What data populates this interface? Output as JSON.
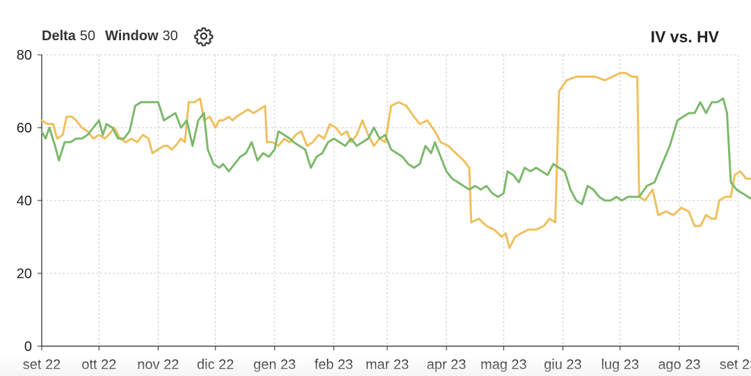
{
  "controls": {
    "delta_label": "Delta",
    "delta_value": "50",
    "window_label": "Window",
    "window_value": "30",
    "settings_icon": "gear-icon"
  },
  "chart_data": {
    "type": "line",
    "title": "IV vs. HV",
    "xlabel": "",
    "ylabel": "",
    "ylim": [
      0,
      80
    ],
    "yticks": [
      0,
      20,
      40,
      60,
      80
    ],
    "xlim": [
      "2022-09-01",
      "2023-09-01"
    ],
    "xticks": [
      {
        "date": "2022-09-01",
        "label": "set 22"
      },
      {
        "date": "2022-10-01",
        "label": "ott 22"
      },
      {
        "date": "2022-11-01",
        "label": "nov 22"
      },
      {
        "date": "2022-12-01",
        "label": "dic 22"
      },
      {
        "date": "2023-01-01",
        "label": "gen 23"
      },
      {
        "date": "2023-02-01",
        "label": "feb 23"
      },
      {
        "date": "2023-03-01",
        "label": "mar 23"
      },
      {
        "date": "2023-04-01",
        "label": "apr 23"
      },
      {
        "date": "2023-05-01",
        "label": "mag 23"
      },
      {
        "date": "2023-06-01",
        "label": "giu 23"
      },
      {
        "date": "2023-07-01",
        "label": "lug 23"
      },
      {
        "date": "2023-08-01",
        "label": "ago 23"
      },
      {
        "date": "2023-09-01",
        "label": "set 23"
      }
    ],
    "grid": true,
    "series": [
      {
        "color": "#f0bf5b",
        "points": [
          [
            "2022-09-01",
            62
          ],
          [
            "2022-09-04",
            61
          ],
          [
            "2022-09-07",
            61
          ],
          [
            "2022-09-09",
            57
          ],
          [
            "2022-09-12",
            58
          ],
          [
            "2022-09-14",
            63
          ],
          [
            "2022-09-17",
            63
          ],
          [
            "2022-09-19",
            62
          ],
          [
            "2022-09-22",
            60
          ],
          [
            "2022-09-25",
            59
          ],
          [
            "2022-09-28",
            57
          ],
          [
            "2022-10-01",
            58
          ],
          [
            "2022-10-04",
            57
          ],
          [
            "2022-10-06",
            58
          ],
          [
            "2022-10-09",
            60
          ],
          [
            "2022-10-12",
            57
          ],
          [
            "2022-10-15",
            56
          ],
          [
            "2022-10-18",
            57
          ],
          [
            "2022-10-21",
            56
          ],
          [
            "2022-10-24",
            58
          ],
          [
            "2022-10-27",
            57
          ],
          [
            "2022-10-29",
            53
          ],
          [
            "2022-11-01",
            54
          ],
          [
            "2022-11-04",
            55
          ],
          [
            "2022-11-06",
            55
          ],
          [
            "2022-11-08",
            54
          ],
          [
            "2022-11-10",
            55
          ],
          [
            "2022-11-13",
            57
          ],
          [
            "2022-11-15",
            56
          ],
          [
            "2022-11-17",
            67
          ],
          [
            "2022-11-20",
            67
          ],
          [
            "2022-11-23",
            68
          ],
          [
            "2022-11-25",
            62
          ],
          [
            "2022-11-28",
            63
          ],
          [
            "2022-12-01",
            60
          ],
          [
            "2022-12-03",
            62
          ],
          [
            "2022-12-05",
            62
          ],
          [
            "2022-12-08",
            63
          ],
          [
            "2022-12-10",
            62
          ],
          [
            "2022-12-12",
            63
          ],
          [
            "2022-12-15",
            64
          ],
          [
            "2022-12-18",
            65
          ],
          [
            "2022-12-21",
            64
          ],
          [
            "2022-12-24",
            65
          ],
          [
            "2022-12-27",
            66
          ],
          [
            "2022-12-28",
            56
          ],
          [
            "2022-12-31",
            56
          ],
          [
            "2023-01-03",
            55
          ],
          [
            "2023-01-06",
            57
          ],
          [
            "2023-01-09",
            56
          ],
          [
            "2023-01-12",
            58
          ],
          [
            "2023-01-15",
            59
          ],
          [
            "2023-01-18",
            55
          ],
          [
            "2023-01-21",
            56
          ],
          [
            "2023-01-24",
            58
          ],
          [
            "2023-01-27",
            57
          ],
          [
            "2023-01-30",
            61
          ],
          [
            "2023-02-02",
            60
          ],
          [
            "2023-02-05",
            58
          ],
          [
            "2023-02-08",
            59
          ],
          [
            "2023-02-10",
            56
          ],
          [
            "2023-02-13",
            58
          ],
          [
            "2023-02-16",
            62
          ],
          [
            "2023-02-19",
            58
          ],
          [
            "2023-02-22",
            55
          ],
          [
            "2023-02-25",
            57
          ],
          [
            "2023-02-28",
            56
          ],
          [
            "2023-03-03",
            66
          ],
          [
            "2023-03-07",
            67
          ],
          [
            "2023-03-11",
            66
          ],
          [
            "2023-03-15",
            63
          ],
          [
            "2023-03-18",
            61
          ],
          [
            "2023-03-22",
            62
          ],
          [
            "2023-03-26",
            59
          ],
          [
            "2023-03-29",
            56
          ],
          [
            "2023-04-02",
            55
          ],
          [
            "2023-04-06",
            53
          ],
          [
            "2023-04-10",
            51
          ],
          [
            "2023-04-13",
            49
          ],
          [
            "2023-04-14",
            34
          ],
          [
            "2023-04-18",
            35
          ],
          [
            "2023-04-22",
            33
          ],
          [
            "2023-04-26",
            32
          ],
          [
            "2023-04-30",
            30
          ],
          [
            "2023-05-02",
            31
          ],
          [
            "2023-05-04",
            27
          ],
          [
            "2023-05-07",
            30
          ],
          [
            "2023-05-10",
            31
          ],
          [
            "2023-05-14",
            32
          ],
          [
            "2023-05-18",
            32
          ],
          [
            "2023-05-22",
            33
          ],
          [
            "2023-05-25",
            35
          ],
          [
            "2023-05-28",
            34
          ],
          [
            "2023-05-30",
            70
          ],
          [
            "2023-06-03",
            73
          ],
          [
            "2023-06-08",
            74
          ],
          [
            "2023-06-13",
            74
          ],
          [
            "2023-06-18",
            74
          ],
          [
            "2023-06-23",
            73
          ],
          [
            "2023-06-27",
            74
          ],
          [
            "2023-07-01",
            75
          ],
          [
            "2023-07-04",
            75
          ],
          [
            "2023-07-07",
            74
          ],
          [
            "2023-07-10",
            74
          ],
          [
            "2023-07-11",
            41
          ],
          [
            "2023-07-14",
            40
          ],
          [
            "2023-07-18",
            43
          ],
          [
            "2023-07-21",
            36
          ],
          [
            "2023-07-25",
            37
          ],
          [
            "2023-07-29",
            36
          ],
          [
            "2023-08-02",
            38
          ],
          [
            "2023-08-06",
            37
          ],
          [
            "2023-08-09",
            33
          ],
          [
            "2023-08-12",
            33
          ],
          [
            "2023-08-15",
            36
          ],
          [
            "2023-08-18",
            35
          ],
          [
            "2023-08-20",
            35
          ],
          [
            "2023-08-22",
            40
          ],
          [
            "2023-08-25",
            41
          ],
          [
            "2023-08-28",
            41
          ],
          [
            "2023-08-30",
            47
          ],
          [
            "2023-09-02",
            48
          ],
          [
            "2023-09-05",
            46
          ],
          [
            "2023-09-08",
            46
          ],
          [
            "2023-09-11",
            45
          ]
        ]
      },
      {
        "color": "#7cb86b",
        "points": [
          [
            "2022-09-01",
            59
          ],
          [
            "2022-09-03",
            57
          ],
          [
            "2022-09-05",
            60
          ],
          [
            "2022-09-08",
            55
          ],
          [
            "2022-09-10",
            51
          ],
          [
            "2022-09-13",
            56
          ],
          [
            "2022-09-16",
            56
          ],
          [
            "2022-09-19",
            57
          ],
          [
            "2022-09-22",
            57
          ],
          [
            "2022-09-25",
            58
          ],
          [
            "2022-09-28",
            60
          ],
          [
            "2022-10-01",
            62
          ],
          [
            "2022-10-03",
            58
          ],
          [
            "2022-10-05",
            61
          ],
          [
            "2022-10-08",
            60
          ],
          [
            "2022-10-11",
            57
          ],
          [
            "2022-10-14",
            57
          ],
          [
            "2022-10-17",
            59
          ],
          [
            "2022-10-20",
            66
          ],
          [
            "2022-10-23",
            67
          ],
          [
            "2022-10-26",
            67
          ],
          [
            "2022-10-29",
            67
          ],
          [
            "2022-11-01",
            67
          ],
          [
            "2022-11-04",
            62
          ],
          [
            "2022-11-07",
            63
          ],
          [
            "2022-11-10",
            64
          ],
          [
            "2022-11-13",
            60
          ],
          [
            "2022-11-16",
            62
          ],
          [
            "2022-11-19",
            55
          ],
          [
            "2022-11-22",
            62
          ],
          [
            "2022-11-25",
            64
          ],
          [
            "2022-11-27",
            54
          ],
          [
            "2022-11-30",
            50
          ],
          [
            "2022-12-03",
            49
          ],
          [
            "2022-12-05",
            50
          ],
          [
            "2022-12-08",
            48
          ],
          [
            "2022-12-11",
            50
          ],
          [
            "2022-12-14",
            52
          ],
          [
            "2022-12-17",
            53
          ],
          [
            "2022-12-20",
            56
          ],
          [
            "2022-12-23",
            51
          ],
          [
            "2022-12-26",
            53
          ],
          [
            "2022-12-29",
            52
          ],
          [
            "2023-01-01",
            54
          ],
          [
            "2023-01-03",
            59
          ],
          [
            "2023-01-06",
            58
          ],
          [
            "2023-01-09",
            57
          ],
          [
            "2023-01-11",
            56
          ],
          [
            "2023-01-14",
            55
          ],
          [
            "2023-01-17",
            54
          ],
          [
            "2023-01-20",
            49
          ],
          [
            "2023-01-23",
            52
          ],
          [
            "2023-01-26",
            53
          ],
          [
            "2023-01-29",
            56
          ],
          [
            "2023-02-01",
            57
          ],
          [
            "2023-02-04",
            56
          ],
          [
            "2023-02-07",
            55
          ],
          [
            "2023-02-10",
            57
          ],
          [
            "2023-02-13",
            55
          ],
          [
            "2023-02-16",
            56
          ],
          [
            "2023-02-19",
            57
          ],
          [
            "2023-02-22",
            60
          ],
          [
            "2023-02-25",
            57
          ],
          [
            "2023-02-28",
            58
          ],
          [
            "2023-03-03",
            54
          ],
          [
            "2023-03-06",
            53
          ],
          [
            "2023-03-09",
            52
          ],
          [
            "2023-03-12",
            50
          ],
          [
            "2023-03-15",
            49
          ],
          [
            "2023-03-18",
            50
          ],
          [
            "2023-03-21",
            55
          ],
          [
            "2023-03-24",
            53
          ],
          [
            "2023-03-26",
            56
          ],
          [
            "2023-03-29",
            52
          ],
          [
            "2023-04-01",
            48
          ],
          [
            "2023-04-04",
            46
          ],
          [
            "2023-04-07",
            45
          ],
          [
            "2023-04-10",
            44
          ],
          [
            "2023-04-13",
            43
          ],
          [
            "2023-04-16",
            44
          ],
          [
            "2023-04-19",
            43
          ],
          [
            "2023-04-22",
            44
          ],
          [
            "2023-04-25",
            42
          ],
          [
            "2023-04-28",
            41
          ],
          [
            "2023-05-01",
            42
          ],
          [
            "2023-05-03",
            48
          ],
          [
            "2023-05-06",
            47
          ],
          [
            "2023-05-09",
            45
          ],
          [
            "2023-05-12",
            49
          ],
          [
            "2023-05-15",
            48
          ],
          [
            "2023-05-18",
            49
          ],
          [
            "2023-05-21",
            48
          ],
          [
            "2023-05-24",
            47
          ],
          [
            "2023-05-27",
            50
          ],
          [
            "2023-05-30",
            49
          ],
          [
            "2023-06-02",
            48
          ],
          [
            "2023-06-05",
            43
          ],
          [
            "2023-06-08",
            40
          ],
          [
            "2023-06-11",
            39
          ],
          [
            "2023-06-14",
            44
          ],
          [
            "2023-06-17",
            43
          ],
          [
            "2023-06-20",
            41
          ],
          [
            "2023-06-23",
            40
          ],
          [
            "2023-06-26",
            40
          ],
          [
            "2023-06-29",
            41
          ],
          [
            "2023-07-02",
            40
          ],
          [
            "2023-07-05",
            41
          ],
          [
            "2023-07-08",
            41
          ],
          [
            "2023-07-11",
            41
          ],
          [
            "2023-07-15",
            44
          ],
          [
            "2023-07-19",
            45
          ],
          [
            "2023-07-23",
            50
          ],
          [
            "2023-07-27",
            55
          ],
          [
            "2023-07-31",
            62
          ],
          [
            "2023-08-03",
            63
          ],
          [
            "2023-08-06",
            64
          ],
          [
            "2023-08-09",
            64
          ],
          [
            "2023-08-12",
            67
          ],
          [
            "2023-08-15",
            64
          ],
          [
            "2023-08-18",
            67
          ],
          [
            "2023-08-21",
            67
          ],
          [
            "2023-08-24",
            68
          ],
          [
            "2023-08-26",
            64
          ],
          [
            "2023-08-28",
            45
          ],
          [
            "2023-08-31",
            43
          ],
          [
            "2023-09-03",
            42
          ],
          [
            "2023-09-06",
            41
          ],
          [
            "2023-09-09",
            40
          ],
          [
            "2023-09-11",
            40
          ]
        ]
      }
    ]
  }
}
